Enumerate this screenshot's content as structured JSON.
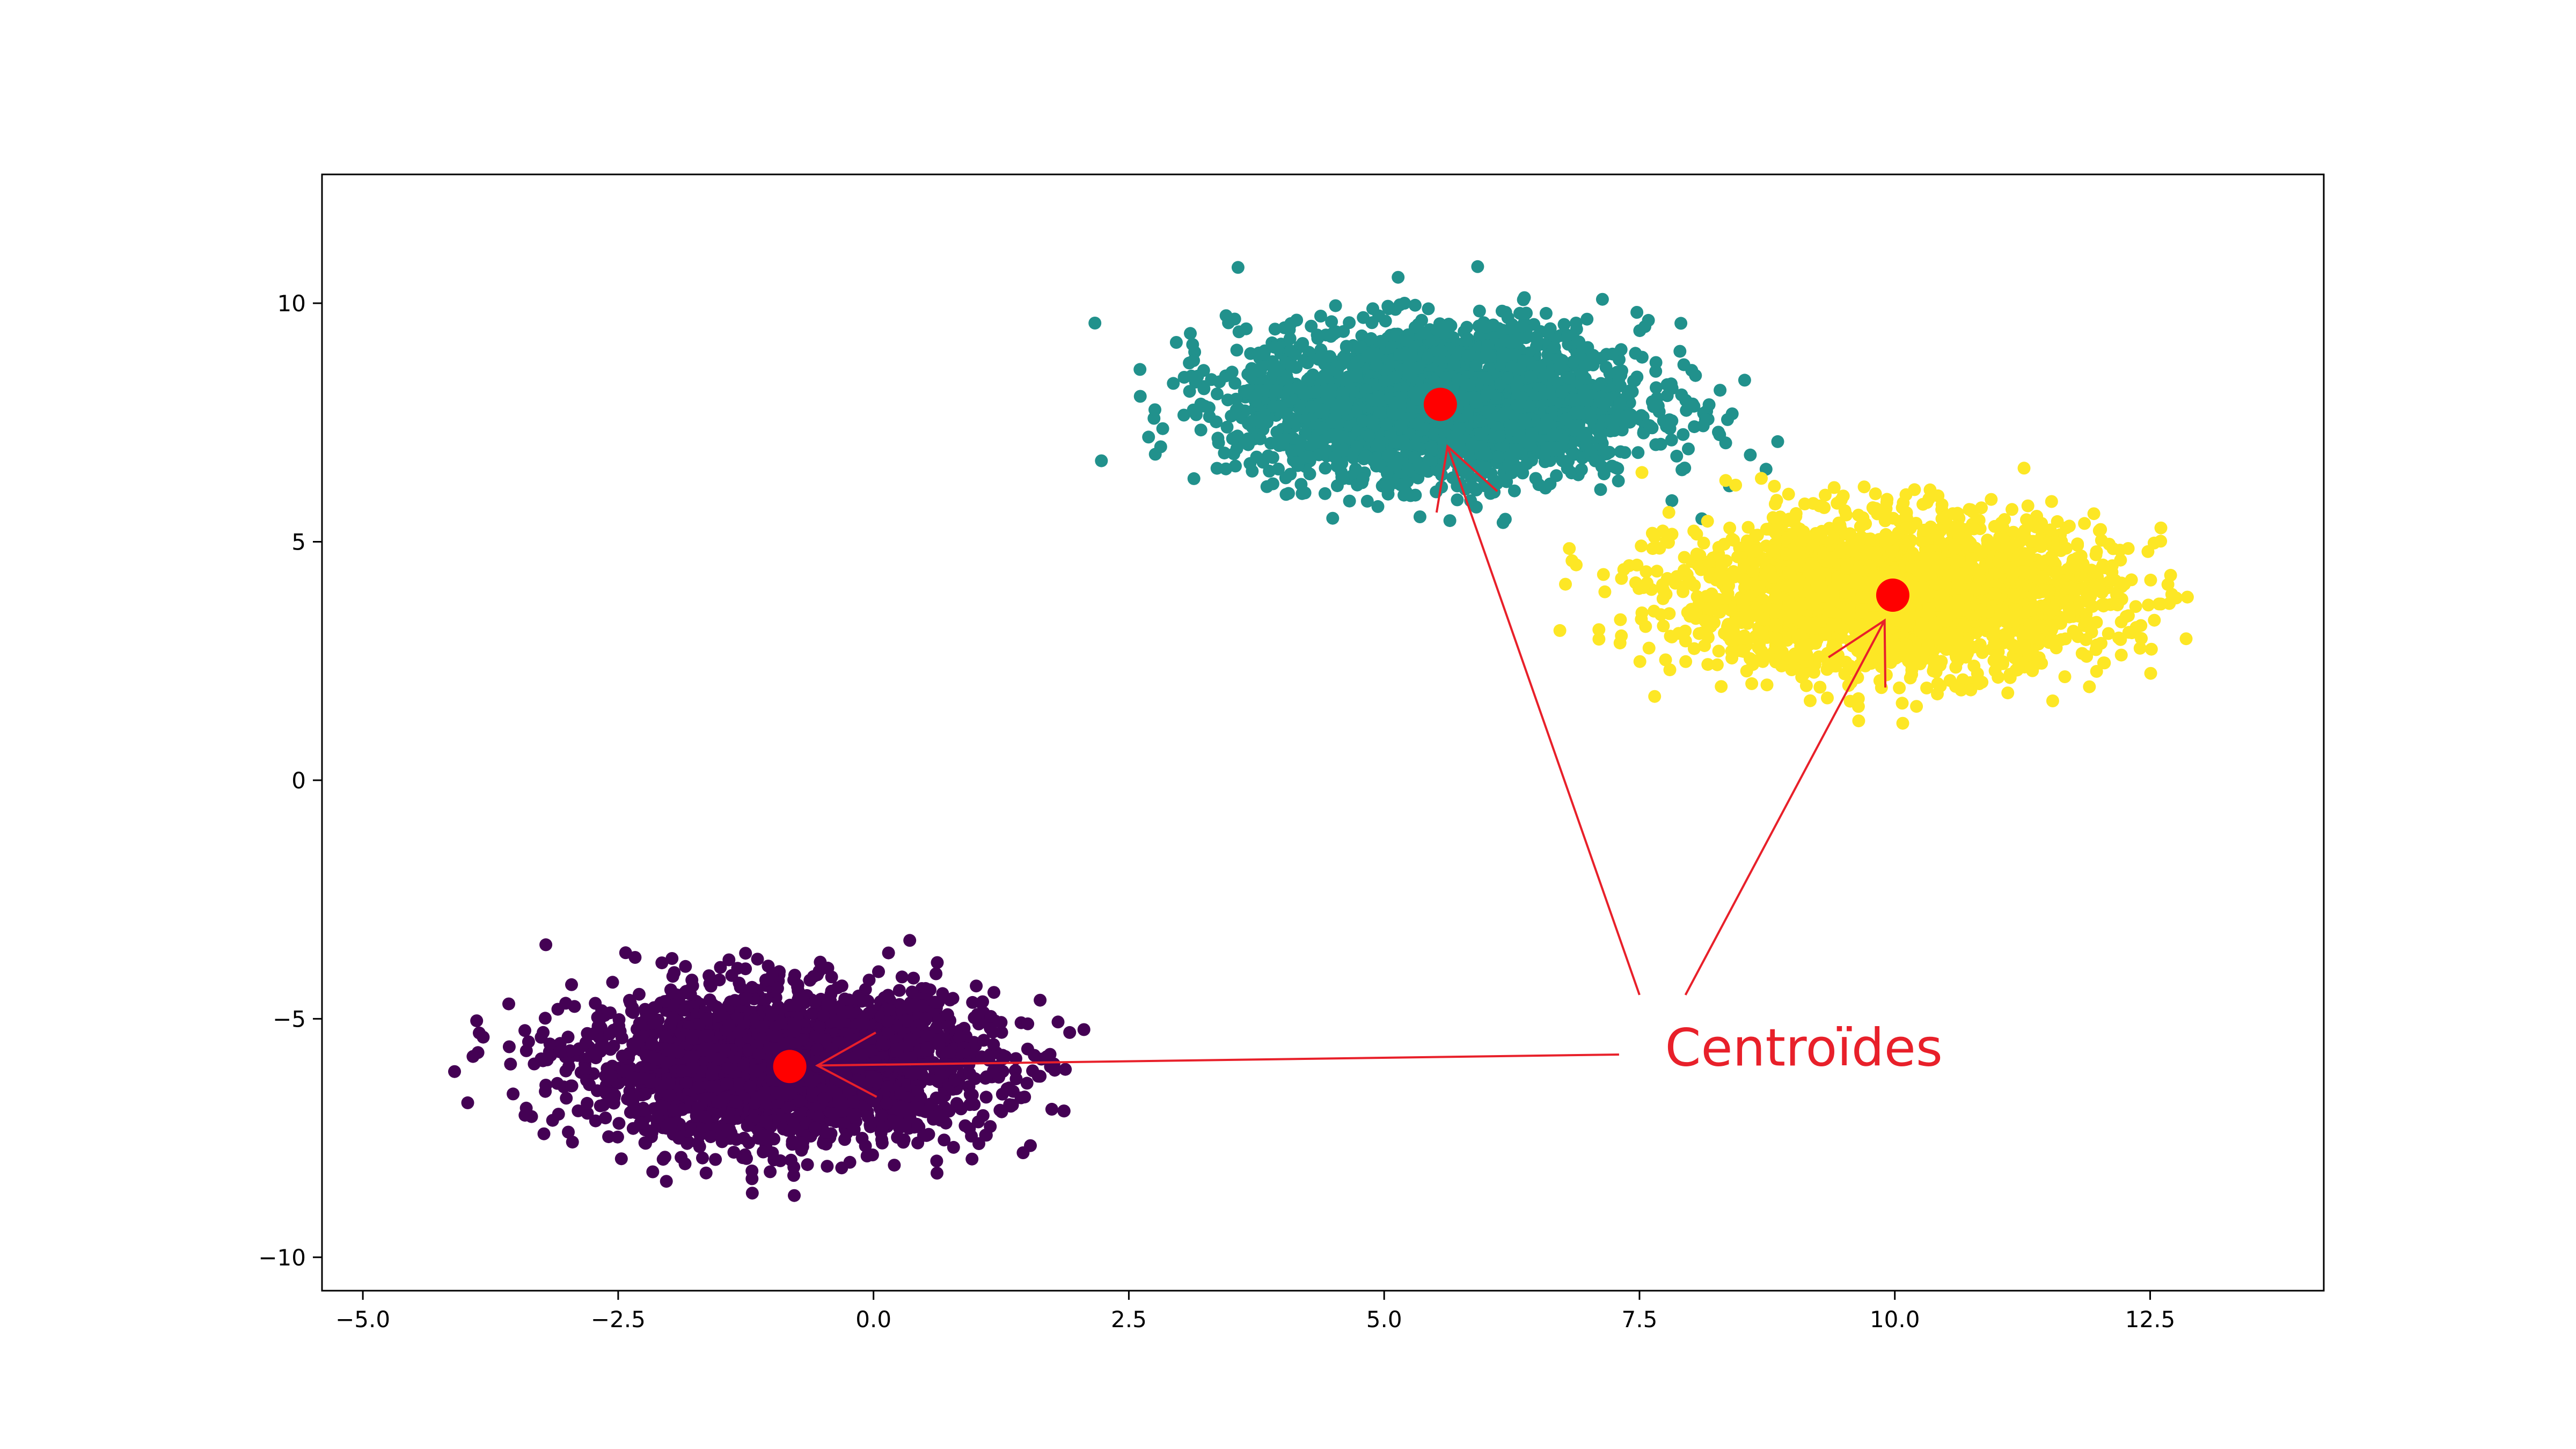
{
  "chart_data": {
    "type": "scatter",
    "title": "",
    "xlabel": "",
    "ylabel": "",
    "xlim": [
      -5.4,
      14.2
    ],
    "ylim": [
      -10.7,
      12.7
    ],
    "grid": false,
    "xticks": [
      -5.0,
      -2.5,
      0.0,
      2.5,
      5.0,
      7.5,
      10.0,
      12.5
    ],
    "xtick_labels": [
      "−5.0",
      "−2.5",
      "0.0",
      "2.5",
      "5.0",
      "7.5",
      "10.0",
      "12.5"
    ],
    "yticks": [
      -10,
      -5,
      0,
      5,
      10
    ],
    "ytick_labels": [
      "−10",
      "−5",
      "0",
      "5",
      "10"
    ],
    "series": [
      {
        "color": "#440154",
        "center": [
          -0.85,
          -6.0
        ],
        "spread": [
          1.0,
          0.8
        ],
        "count": 2500,
        "range_x": [
          -4.5,
          2.3
        ],
        "range_y": [
          -9.3,
          -2.6
        ]
      },
      {
        "color": "#21918c",
        "center": [
          5.55,
          7.9
        ],
        "spread": [
          1.0,
          0.8
        ],
        "count": 2500,
        "range_x": [
          1.9,
          9.2
        ],
        "range_y": [
          4.0,
          12.0
        ]
      },
      {
        "color": "#fde725",
        "center": [
          10.0,
          3.9
        ],
        "spread": [
          1.05,
          0.8
        ],
        "count": 2500,
        "range_x": [
          6.3,
          13.4
        ],
        "range_y": [
          0.6,
          7.7
        ]
      }
    ],
    "centroids": {
      "color": "#ff0000",
      "points": [
        {
          "x": -0.82,
          "y": -6.0
        },
        {
          "x": 5.55,
          "y": 7.88
        },
        {
          "x": 9.98,
          "y": 3.88
        }
      ]
    },
    "annotation": {
      "text": "Centroïdes",
      "color": "#e8202a",
      "anchor": {
        "x": 7.75,
        "y": -5.6
      },
      "arrows": [
        {
          "from": {
            "x": 7.3,
            "y": -5.75
          },
          "to": {
            "x": -0.55,
            "y": -5.98
          }
        },
        {
          "from": {
            "x": 7.5,
            "y": -4.5
          },
          "to": {
            "x": 5.62,
            "y": 7.0
          }
        },
        {
          "from": {
            "x": 7.95,
            "y": -4.5
          },
          "to": {
            "x": 9.9,
            "y": 3.35
          }
        }
      ]
    }
  }
}
